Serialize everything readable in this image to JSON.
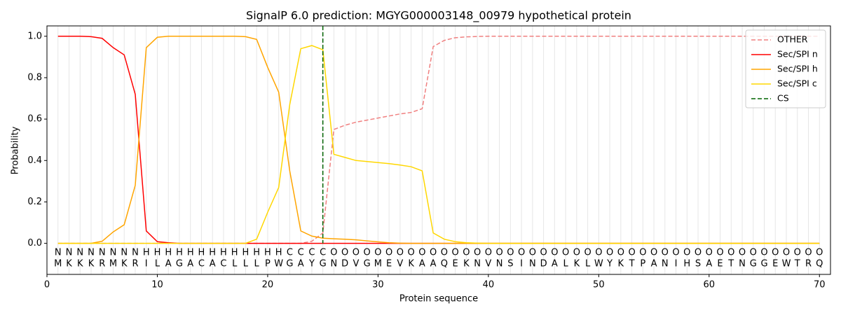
{
  "chart_data": {
    "type": "line",
    "title": "SignalP 6.0 prediction: MGYG000003148_00979 hypothetical protein",
    "x_label": "Protein sequence",
    "y_label": "Probability",
    "xlim": [
      0,
      71
    ],
    "ylim": [
      -0.15,
      1.05
    ],
    "xticks": [
      0,
      10,
      20,
      30,
      40,
      50,
      60,
      70
    ],
    "yticks": [
      {
        "value": 0,
        "label": "0.0"
      },
      0.2,
      0.4,
      0.6,
      0.8,
      {
        "value": 1,
        "label": "1.0"
      }
    ],
    "grid": "x",
    "legend": "upper right",
    "x": [
      1,
      2,
      3,
      4,
      5,
      6,
      7,
      8,
      9,
      10,
      11,
      12,
      13,
      14,
      15,
      16,
      17,
      18,
      19,
      20,
      21,
      22,
      23,
      24,
      25,
      26,
      27,
      28,
      29,
      30,
      31,
      32,
      33,
      34,
      35,
      36,
      37,
      38,
      39,
      40,
      41,
      42,
      43,
      44,
      45,
      46,
      47,
      48,
      49,
      50,
      51,
      52,
      53,
      54,
      55,
      56,
      57,
      58,
      59,
      60,
      61,
      62,
      63,
      64,
      65,
      66,
      67,
      68,
      69,
      70
    ],
    "series": [
      {
        "name": "OTHER",
        "color": "#f08080",
        "dashed": true,
        "values": [
          0,
          0,
          0,
          0,
          0,
          0,
          0,
          0,
          0,
          0,
          0,
          0,
          0,
          0,
          0,
          0,
          0,
          0,
          0,
          0,
          0,
          0,
          0,
          0.01,
          0.05,
          0.55,
          0.57,
          0.585,
          0.595,
          0.605,
          0.615,
          0.625,
          0.632,
          0.65,
          0.95,
          0.98,
          0.993,
          0.997,
          0.999,
          1,
          1,
          1,
          1,
          1,
          1,
          1,
          1,
          1,
          1,
          1,
          1,
          1,
          1,
          1,
          1,
          1,
          1,
          1,
          1,
          1,
          1,
          1,
          1,
          1,
          1,
          1,
          1,
          1,
          1,
          1
        ]
      },
      {
        "name": "Sec/SPI n",
        "color": "#ff0000",
        "dashed": false,
        "values": [
          1,
          1,
          1,
          0.998,
          0.99,
          0.945,
          0.91,
          0.72,
          0.06,
          0.008,
          0.003,
          0,
          0,
          0,
          0,
          0,
          0,
          0,
          0,
          0,
          0,
          0,
          0,
          0,
          0,
          0,
          0,
          0,
          0,
          0,
          0,
          0,
          0,
          0,
          0,
          0,
          0,
          0,
          0,
          0,
          0,
          0,
          0,
          0,
          0,
          0,
          0,
          0,
          0,
          0,
          0,
          0,
          0,
          0,
          0,
          0,
          0,
          0,
          0,
          0,
          0,
          0,
          0,
          0,
          0,
          0,
          0,
          0,
          0,
          0
        ]
      },
      {
        "name": "Sec/SPI h",
        "color": "#ffa500",
        "dashed": false,
        "values": [
          0,
          0,
          0,
          0,
          0.01,
          0.055,
          0.09,
          0.28,
          0.945,
          0.995,
          1,
          1,
          1,
          1,
          1,
          1,
          1,
          0.998,
          0.985,
          0.85,
          0.73,
          0.35,
          0.06,
          0.035,
          0.025,
          0.022,
          0.02,
          0.017,
          0.012,
          0.007,
          0.003,
          0.001,
          0,
          0,
          0,
          0,
          0,
          0,
          0,
          0,
          0,
          0,
          0,
          0,
          0,
          0,
          0,
          0,
          0,
          0,
          0,
          0,
          0,
          0,
          0,
          0,
          0,
          0,
          0,
          0,
          0,
          0,
          0,
          0,
          0,
          0,
          0,
          0,
          0,
          0
        ]
      },
      {
        "name": "Sec/SPI c",
        "color": "#ffd700",
        "dashed": false,
        "values": [
          0,
          0,
          0,
          0,
          0,
          0,
          0,
          0,
          0,
          0,
          0,
          0,
          0,
          0,
          0,
          0,
          0,
          0,
          0.02,
          0.15,
          0.27,
          0.67,
          0.94,
          0.955,
          0.935,
          0.43,
          0.415,
          0.4,
          0.395,
          0.39,
          0.385,
          0.378,
          0.37,
          0.35,
          0.05,
          0.02,
          0.008,
          0.003,
          0.001,
          0,
          0,
          0,
          0,
          0,
          0,
          0,
          0,
          0,
          0,
          0,
          0,
          0,
          0,
          0,
          0,
          0,
          0,
          0,
          0,
          0,
          0,
          0,
          0,
          0,
          0,
          0,
          0,
          0,
          0,
          0
        ]
      }
    ],
    "cs": {
      "name": "CS",
      "color": "#006400",
      "x": 25
    },
    "region_colors": {
      "N": "#ff0000",
      "H": "#ffa500",
      "C": "#ffc400",
      "O": "#808080"
    },
    "region_labels": [
      "N",
      "N",
      "N",
      "N",
      "N",
      "N",
      "N",
      "N",
      "H",
      "H",
      "H",
      "H",
      "H",
      "H",
      "H",
      "H",
      "H",
      "H",
      "H",
      "H",
      "H",
      "C",
      "C",
      "C",
      "C",
      "O",
      "O",
      "O",
      "O",
      "O",
      "O",
      "O",
      "O",
      "O",
      "O",
      "O",
      "O",
      "O",
      "O",
      "O",
      "O",
      "O",
      "O",
      "O",
      "O",
      "O",
      "O",
      "O",
      "O",
      "O",
      "O",
      "O",
      "O",
      "O",
      "O",
      "O",
      "O",
      "O",
      "O",
      "O",
      "O",
      "O",
      "O",
      "O",
      "O",
      "O",
      "O",
      "O",
      "O",
      "O"
    ],
    "sequence": [
      "M",
      "K",
      "K",
      "K",
      "R",
      "M",
      "K",
      "R",
      "I",
      "L",
      "A",
      "G",
      "A",
      "C",
      "A",
      "C",
      "L",
      "L",
      "L",
      "P",
      "W",
      "G",
      "A",
      "Y",
      "G",
      "N",
      "D",
      "V",
      "G",
      "M",
      "E",
      "V",
      "K",
      "A",
      "A",
      "Q",
      "E",
      "K",
      "N",
      "V",
      "N",
      "S",
      "I",
      "N",
      "D",
      "A",
      "L",
      "K",
      "L",
      "W",
      "Y",
      "K",
      "T",
      "P",
      "A",
      "N",
      "I",
      "H",
      "S",
      "A",
      "E",
      "T",
      "N",
      "G",
      "G",
      "E",
      "W",
      "T",
      "R",
      "Q"
    ]
  }
}
